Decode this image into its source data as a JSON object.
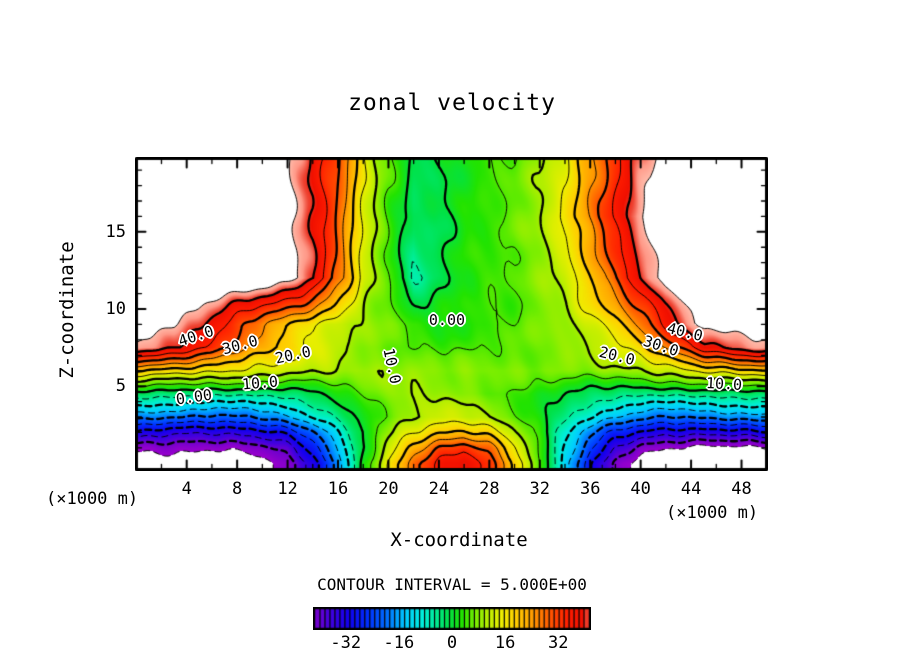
{
  "chart_data": {
    "type": "heatmap",
    "title": "zonal velocity",
    "xlabel": "X-coordinate",
    "ylabel": "Z-coordinate",
    "x_unit_label": "(×1000 m)",
    "contour_note": "CONTOUR INTERVAL = 5.000E+00",
    "xlim": [
      -0.1,
      50.1
    ],
    "ylim": [
      -0.5,
      19.85
    ],
    "x_ticks": [
      4,
      8,
      12,
      16,
      20,
      24,
      28,
      32,
      36,
      40,
      44,
      48
    ],
    "y_ticks": [
      5,
      10,
      15
    ],
    "x_minor_step": 2,
    "y_minor_step": 1,
    "contour_levels": {
      "min": -45,
      "max": 45,
      "interval": 5,
      "thick_every": 10,
      "dashed_below": 0
    },
    "white_threshold": 45,
    "grid": {
      "x": [
        0,
        3,
        6,
        9,
        12,
        14,
        16,
        18,
        20,
        22,
        24,
        26,
        28,
        30,
        32,
        34,
        36,
        38,
        40,
        42,
        45,
        50
      ],
      "z": [
        0,
        1,
        2,
        3,
        4.5,
        6,
        7.5,
        9,
        12,
        16,
        20
      ],
      "u": [
        [
          -49,
          -50,
          -50,
          -48,
          -43,
          -34,
          -18,
          2,
          16,
          28,
          36,
          39,
          33,
          20,
          6,
          -12,
          -30,
          -42,
          -48,
          -50,
          -51,
          -49
        ],
        [
          -44,
          -43,
          -44,
          -43,
          -38,
          -28,
          -14,
          0,
          12,
          22,
          30,
          33,
          28,
          16,
          4,
          -10,
          -24,
          -35,
          -42,
          -44,
          -47,
          -46
        ],
        [
          -30,
          -33,
          -35,
          -34,
          -28,
          -20,
          -10,
          0,
          8,
          15,
          20,
          22,
          18,
          10,
          2,
          -8,
          -18,
          -26,
          -31,
          -34,
          -33,
          -30
        ],
        [
          -18,
          -20,
          -21,
          -20,
          -16,
          -10,
          -4,
          2,
          6,
          10,
          12,
          12,
          10,
          6,
          2,
          -4,
          -10,
          -15,
          -18,
          -20,
          -19,
          -17
        ],
        [
          -2,
          -3,
          -4,
          -4,
          -3,
          -1,
          2,
          5,
          8,
          10,
          9,
          8,
          6,
          4,
          2,
          0,
          -2,
          -3,
          -4,
          -4,
          -3,
          -2
        ],
        [
          20,
          18,
          16,
          14,
          12,
          11,
          10,
          9,
          9,
          8.5,
          8,
          8,
          7.5,
          7,
          7,
          7.5,
          8,
          9,
          10,
          12,
          16,
          20
        ],
        [
          44,
          40,
          34,
          25,
          18,
          14,
          11,
          8,
          6.5,
          5,
          4,
          4,
          5,
          6,
          7,
          8,
          10,
          13,
          18,
          26,
          38,
          44
        ],
        [
          50,
          46,
          38,
          28,
          20,
          16,
          12,
          9,
          7,
          4,
          2,
          3,
          4,
          5,
          7,
          9,
          13,
          18,
          26,
          36,
          47,
          50
        ],
        [
          52,
          52,
          52,
          51,
          48,
          41,
          28,
          13,
          5,
          -6,
          -1,
          3,
          4,
          5,
          8,
          12,
          20,
          30,
          40,
          47,
          51,
          52
        ],
        [
          52,
          52,
          52,
          52,
          47,
          40,
          29,
          14,
          4,
          -2,
          -1,
          2,
          4,
          6,
          10,
          16,
          26,
          36,
          45,
          50,
          52,
          52
        ],
        [
          53,
          53,
          53,
          52,
          46,
          38,
          31,
          16,
          6,
          -1,
          -0.5,
          2,
          4,
          6,
          9,
          14,
          23,
          33,
          42,
          48,
          52,
          53
        ]
      ]
    },
    "colormap": [
      {
        "v": -45,
        "c": "#9900cc"
      },
      {
        "v": -41,
        "c": "#7700cc"
      },
      {
        "v": -37,
        "c": "#4400dd"
      },
      {
        "v": -31,
        "c": "#1100ee"
      },
      {
        "v": -25,
        "c": "#0033ff"
      },
      {
        "v": -19,
        "c": "#0077ff"
      },
      {
        "v": -14,
        "c": "#00ccff"
      },
      {
        "v": -9,
        "c": "#00eedd"
      },
      {
        "v": -5,
        "c": "#00ee99"
      },
      {
        "v": -1,
        "c": "#00e148"
      },
      {
        "v": 3,
        "c": "#22e300"
      },
      {
        "v": 7,
        "c": "#77ee00"
      },
      {
        "v": 11,
        "c": "#bbee00"
      },
      {
        "v": 15,
        "c": "#eeee00"
      },
      {
        "v": 19,
        "c": "#ffd000"
      },
      {
        "v": 23,
        "c": "#ffaa00"
      },
      {
        "v": 27,
        "c": "#ff7700"
      },
      {
        "v": 31,
        "c": "#ff4400"
      },
      {
        "v": 35,
        "c": "#ff1c00"
      },
      {
        "v": 39,
        "c": "#f01000"
      },
      {
        "v": 41,
        "c": "#ee4433"
      },
      {
        "v": 43,
        "c": "#ff9988"
      },
      {
        "v": 45,
        "c": "#ffbbaa"
      }
    ],
    "colorbar": {
      "vmin": -41.25,
      "vmax": 41.25,
      "cells": 55,
      "labels": [
        -32,
        -16,
        0,
        16,
        32
      ]
    },
    "contour_labels": [
      {
        "text": "40.0",
        "x": 4.74,
        "z": 8.25,
        "rot": -18
      },
      {
        "text": "30.0",
        "x": 8.23,
        "z": 7.66,
        "rot": -15
      },
      {
        "text": "20.0",
        "x": 12.43,
        "z": 7.02,
        "rot": -12
      },
      {
        "text": "10.0",
        "x": 9.81,
        "z": 5.2,
        "rot": -5
      },
      {
        "text": "0.00",
        "x": 4.58,
        "z": 4.29,
        "rot": -8
      },
      {
        "text": "10.0",
        "x": 20.28,
        "z": 6.3,
        "rot": 78
      },
      {
        "text": "0.00",
        "x": 24.64,
        "z": 9.29,
        "rot": 0
      },
      {
        "text": "20.0",
        "x": 38.12,
        "z": 6.95,
        "rot": 14
      },
      {
        "text": "30.0",
        "x": 41.61,
        "z": 7.6,
        "rot": 18
      },
      {
        "text": "40.0",
        "x": 43.51,
        "z": 8.51,
        "rot": 14
      },
      {
        "text": "10.0",
        "x": 46.6,
        "z": 5.14,
        "rot": 3
      }
    ]
  }
}
